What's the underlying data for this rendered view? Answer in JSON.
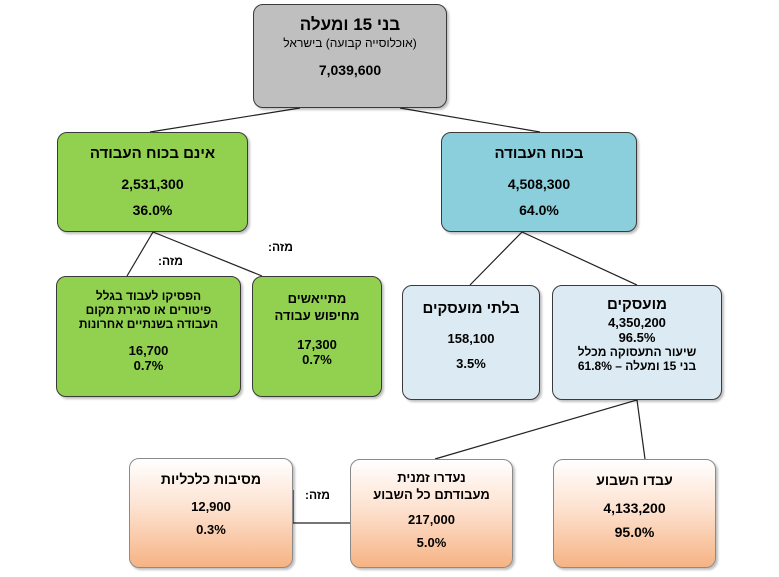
{
  "nodes": {
    "root": {
      "title": "בני 15 ומעלה",
      "subtitle": "(אוכלוסייה קבועה) בישראל",
      "value": "7,039,600"
    },
    "not_labor": {
      "title": "אינם בכוח העבודה",
      "value": "2,531,300",
      "pct": "36.0%"
    },
    "labor": {
      "title": "בכוח העבודה",
      "value": "4,508,300",
      "pct": "64.0%"
    },
    "stopped": {
      "line1": "הפסיקו לעבוד בגלל",
      "line2": "פיטורים או סגירת מקום",
      "line3": "העבודה בשנתיים אחרונות",
      "value": "16,700",
      "pct": "0.7%"
    },
    "discouraged": {
      "line1": "מתייאשים",
      "line2": "מחיפוש עבודה",
      "value": "17,300",
      "pct": "0.7%"
    },
    "unemployed": {
      "title": "בלתי מועסקים",
      "value": "158,100",
      "pct": "3.5%"
    },
    "employed": {
      "title": "מועסקים",
      "value": "4,350,200",
      "pct": "96.5%",
      "line1": "שיעור התעסוקה מכלל",
      "line2": "בני 15 ומעלה – 61.8%"
    },
    "economic": {
      "title": "מסיבות כלכליות",
      "value": "12,900",
      "pct": "0.3%"
    },
    "absent": {
      "line1": "נעדרו זמנית",
      "line2": "מעבודתם כל השבוע",
      "value": "217,000",
      "pct": "5.0%"
    },
    "worked": {
      "title": "עבדו השבוע",
      "value": "4,133,200",
      "pct": "95.0%"
    }
  },
  "notes": {
    "of_which_1": "מזה:",
    "of_which_2": "מזה:",
    "of_which_3": "מזה:"
  },
  "colors": {
    "gray": "#bfbfbf",
    "green": "#92d050",
    "blue": "#8ccfdc",
    "light_blue": "#dcebf3",
    "orange": "#f6b384"
  }
}
